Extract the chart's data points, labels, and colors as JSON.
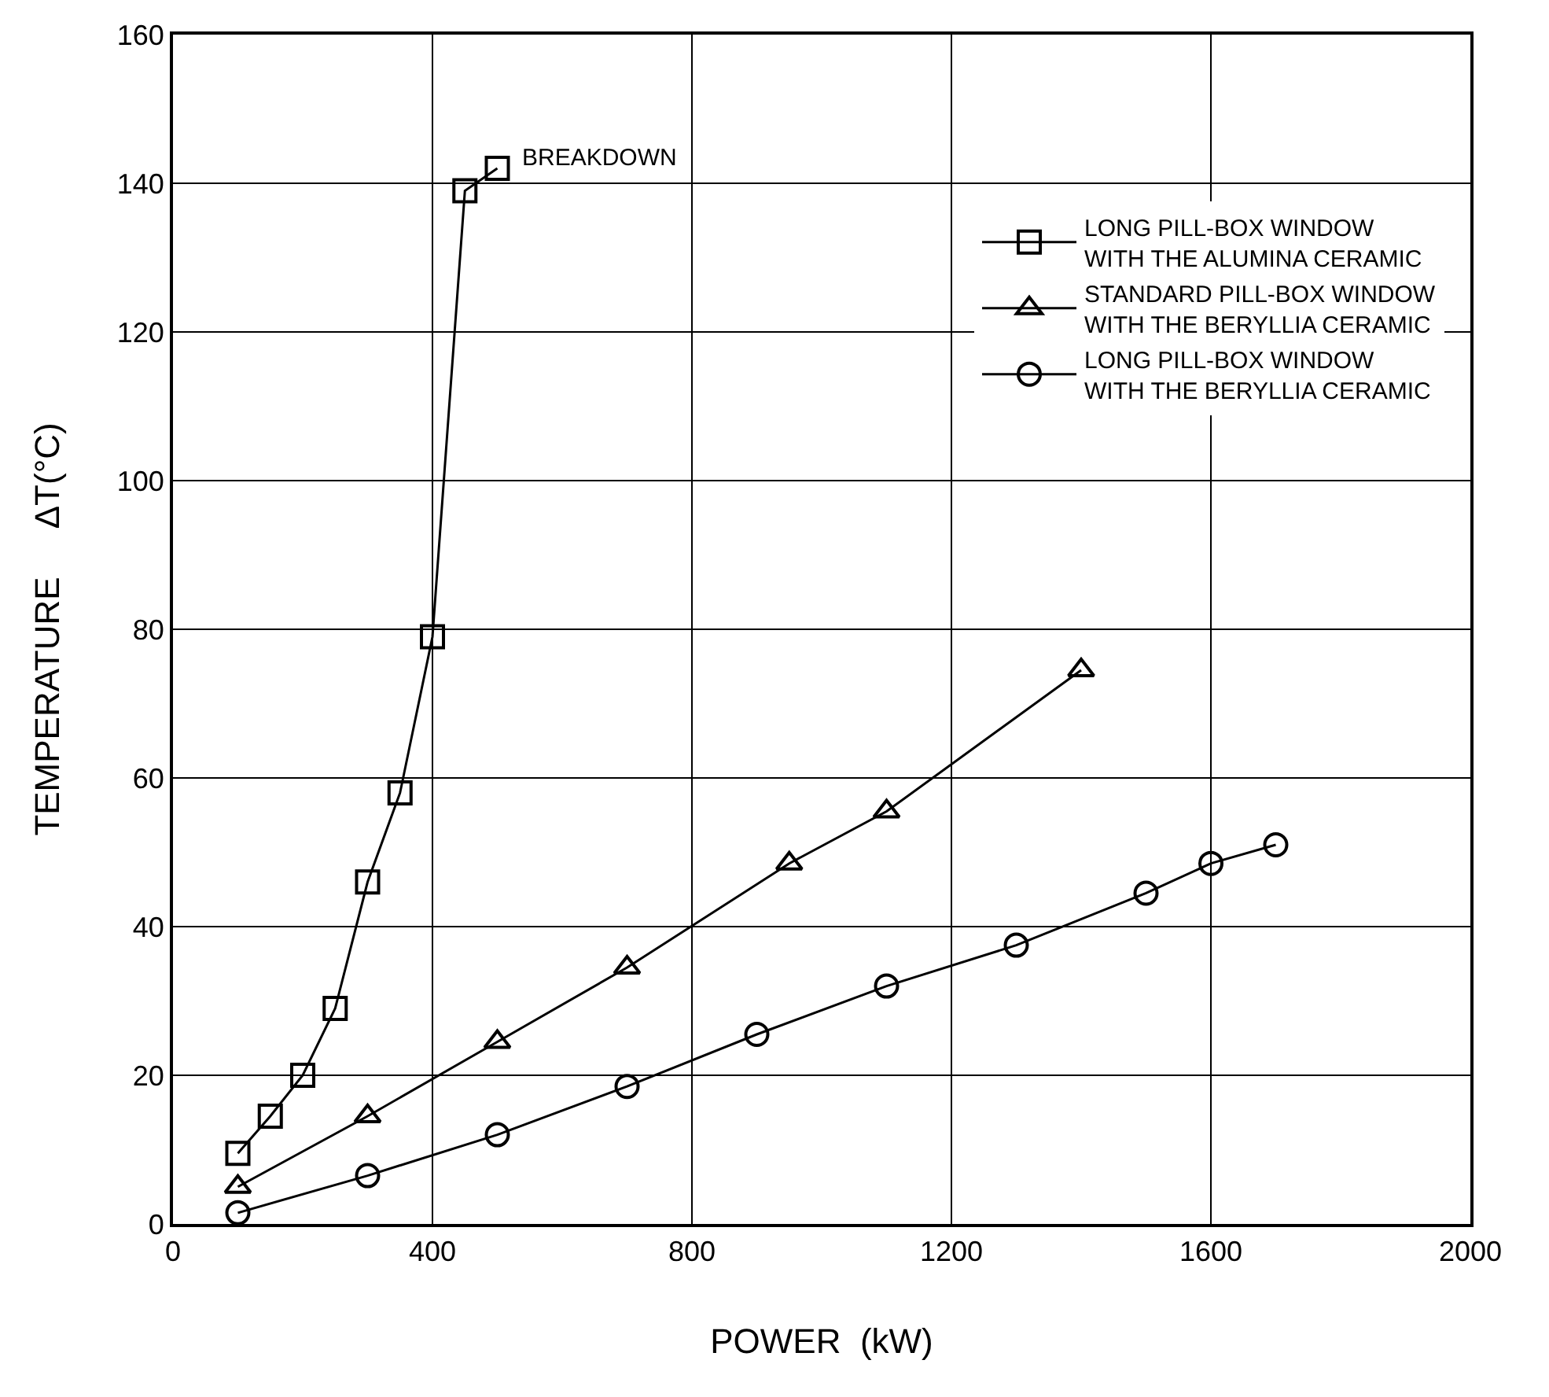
{
  "chart_data": {
    "type": "line",
    "xlabel": "POWER  (kW)",
    "ylabel": "TEMPERATURE     ΔT(°C)",
    "xlim": [
      0,
      2000
    ],
    "xticks": [
      0,
      400,
      800,
      1200,
      1600,
      2000
    ],
    "ylim": [
      0,
      160
    ],
    "yticks": [
      0,
      20,
      40,
      60,
      80,
      100,
      120,
      140,
      160
    ],
    "grid": true,
    "legend": "top right",
    "line_style": "solid",
    "annotations": [
      {
        "text": "BREAKDOWN",
        "x": 500,
        "y": 142
      }
    ],
    "series": [
      {
        "name": "LONG PILL-BOX WINDOW\nWITH THE ALUMINA CERAMIC",
        "color": "#000000",
        "marker": "square",
        "x": [
          100,
          150,
          200,
          250,
          300,
          350,
          400,
          450,
          500
        ],
        "values": [
          9.5,
          14.5,
          20,
          29,
          46,
          58,
          79,
          139,
          142
        ]
      },
      {
        "name": "STANDARD PILL-BOX WINDOW\nWITH THE BERYLLIA CERAMIC",
        "color": "#000000",
        "marker": "triangle",
        "x": [
          100,
          300,
          500,
          700,
          950,
          1100,
          1400
        ],
        "values": [
          5,
          14.5,
          24.5,
          34.5,
          48.5,
          55.5,
          74.5
        ]
      },
      {
        "name": "LONG PILL-BOX WINDOW\nWITH THE BERYLLIA CERAMIC",
        "color": "#000000",
        "marker": "circle",
        "x": [
          100,
          300,
          500,
          700,
          900,
          1100,
          1300,
          1500,
          1600,
          1700
        ],
        "values": [
          1.5,
          6.5,
          12,
          18.5,
          25.5,
          32,
          37.5,
          44.5,
          48.5,
          51
        ]
      }
    ]
  }
}
